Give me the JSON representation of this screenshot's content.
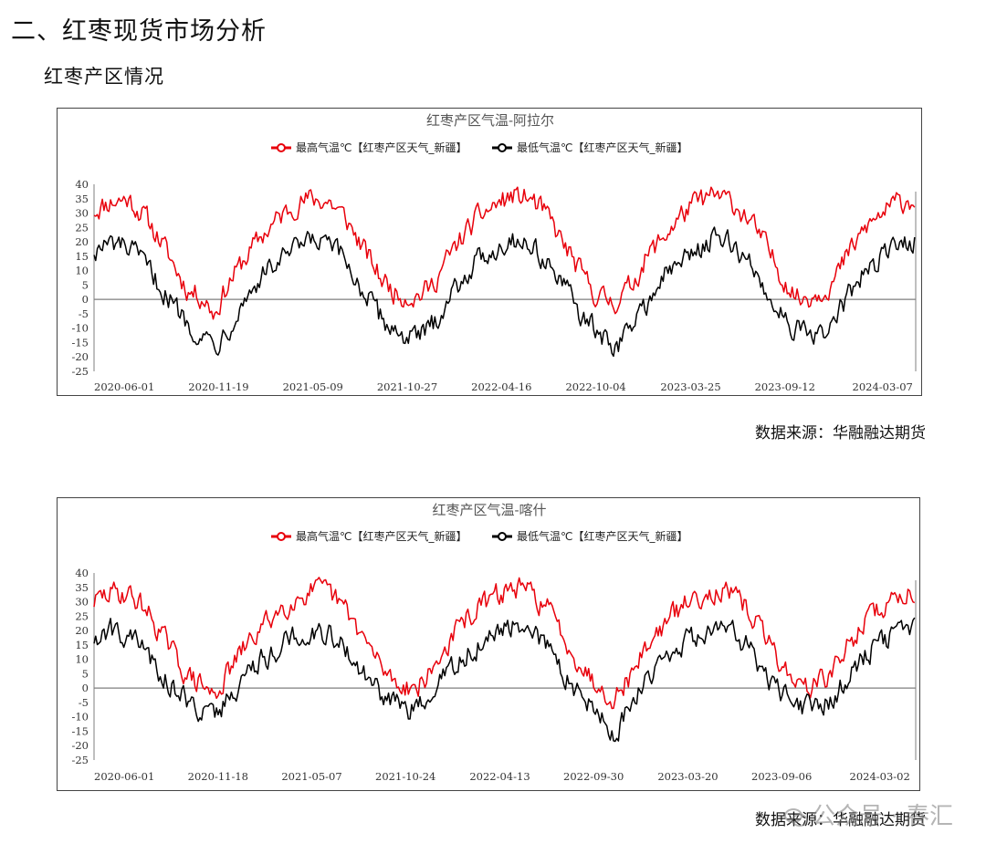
{
  "page": {
    "section_title": "二、红枣现货市场分析",
    "sub_title": "红枣产区情况",
    "sources": [
      "数据来源：华融融达期货",
      "数据来源：华融融达期货"
    ],
    "watermark": "公众号 · 春汇"
  },
  "colors": {
    "max_series": "#e8000b",
    "min_series": "#000000",
    "title": "#555555",
    "axis": "#7f7f7f"
  },
  "chart_data": [
    {
      "type": "line",
      "title": "红枣产区气温-阿拉尔",
      "x_range": [
        "2020-06-01",
        "2024-06-30"
      ],
      "x_ticks": [
        "2020-06-01",
        "2020-11-19",
        "2021-05-09",
        "2021-10-27",
        "2022-04-16",
        "2022-10-04",
        "2023-03-25",
        "2023-09-12",
        "2024-03-07"
      ],
      "ylim": [
        -25,
        40
      ],
      "y_ticks": [
        40,
        35,
        30,
        25,
        20,
        15,
        10,
        5,
        0,
        -5,
        -10,
        -15,
        -20,
        -25
      ],
      "grid": false,
      "legend_position": "top",
      "series": [
        {
          "name": "最高气温℃【红枣产区天气_新疆】",
          "color": "#e8000b",
          "points": [
            [
              "2020-06-01",
              31
            ],
            [
              "2020-07-01",
              34
            ],
            [
              "2020-08-01",
              35
            ],
            [
              "2020-09-01",
              29
            ],
            [
              "2020-10-01",
              20
            ],
            [
              "2020-11-01",
              9
            ],
            [
              "2020-11-19",
              3
            ],
            [
              "2020-12-15",
              1
            ],
            [
              "2021-01-05",
              -5
            ],
            [
              "2021-02-01",
              6
            ],
            [
              "2021-03-01",
              14
            ],
            [
              "2021-04-01",
              22
            ],
            [
              "2021-05-01",
              28
            ],
            [
              "2021-06-01",
              33
            ],
            [
              "2021-07-01",
              35
            ],
            [
              "2021-08-01",
              34
            ],
            [
              "2021-09-01",
              28
            ],
            [
              "2021-10-01",
              18
            ],
            [
              "2021-11-01",
              8
            ],
            [
              "2021-12-01",
              2
            ],
            [
              "2022-01-05",
              1
            ],
            [
              "2022-02-01",
              4
            ],
            [
              "2022-03-01",
              13
            ],
            [
              "2022-04-01",
              22
            ],
            [
              "2022-05-01",
              29
            ],
            [
              "2022-06-01",
              33
            ],
            [
              "2022-07-01",
              36
            ],
            [
              "2022-08-01",
              35
            ],
            [
              "2022-09-01",
              29
            ],
            [
              "2022-10-01",
              19
            ],
            [
              "2022-11-01",
              9
            ],
            [
              "2022-12-01",
              1
            ],
            [
              "2023-01-01",
              -1
            ],
            [
              "2023-02-01",
              5
            ],
            [
              "2023-03-01",
              15
            ],
            [
              "2023-04-01",
              22
            ],
            [
              "2023-05-01",
              29
            ],
            [
              "2023-06-01",
              34
            ],
            [
              "2023-07-01",
              36
            ],
            [
              "2023-08-01",
              34
            ],
            [
              "2023-09-01",
              28
            ],
            [
              "2023-10-01",
              19
            ],
            [
              "2023-11-01",
              8
            ],
            [
              "2023-12-01",
              0
            ],
            [
              "2024-01-01",
              2
            ],
            [
              "2024-02-01",
              6
            ],
            [
              "2024-03-01",
              16
            ],
            [
              "2024-04-01",
              25
            ],
            [
              "2024-05-01",
              30
            ],
            [
              "2024-06-01",
              34
            ],
            [
              "2024-06-30",
              35
            ]
          ]
        },
        {
          "name": "最低气温℃【红枣产区天气_新疆】",
          "color": "#000000",
          "points": [
            [
              "2020-06-01",
              17
            ],
            [
              "2020-07-01",
              19
            ],
            [
              "2020-08-01",
              18
            ],
            [
              "2020-09-01",
              12
            ],
            [
              "2020-10-01",
              4
            ],
            [
              "2020-11-01",
              -4
            ],
            [
              "2020-11-19",
              -8
            ],
            [
              "2020-12-15",
              -13
            ],
            [
              "2021-01-10",
              -15
            ],
            [
              "2021-02-01",
              -9
            ],
            [
              "2021-03-01",
              0
            ],
            [
              "2021-04-01",
              8
            ],
            [
              "2021-05-01",
              13
            ],
            [
              "2021-06-01",
              17
            ],
            [
              "2021-07-01",
              20
            ],
            [
              "2021-08-01",
              19
            ],
            [
              "2021-09-01",
              13
            ],
            [
              "2021-10-01",
              3
            ],
            [
              "2021-11-01",
              -6
            ],
            [
              "2021-12-01",
              -11
            ],
            [
              "2022-01-05",
              -14
            ],
            [
              "2022-02-01",
              -10
            ],
            [
              "2022-03-01",
              -1
            ],
            [
              "2022-04-01",
              8
            ],
            [
              "2022-05-01",
              14
            ],
            [
              "2022-06-01",
              18
            ],
            [
              "2022-07-01",
              21
            ],
            [
              "2022-08-01",
              19
            ],
            [
              "2022-09-01",
              13
            ],
            [
              "2022-10-01",
              4
            ],
            [
              "2022-11-01",
              -5
            ],
            [
              "2022-12-01",
              -12
            ],
            [
              "2023-01-01",
              -17
            ],
            [
              "2023-02-01",
              -9
            ],
            [
              "2023-03-01",
              -1
            ],
            [
              "2023-04-01",
              8
            ],
            [
              "2023-05-01",
              13
            ],
            [
              "2023-06-01",
              18
            ],
            [
              "2023-07-01",
              21
            ],
            [
              "2023-08-01",
              19
            ],
            [
              "2023-09-01",
              13
            ],
            [
              "2023-10-01",
              3
            ],
            [
              "2023-11-01",
              -5
            ],
            [
              "2023-12-01",
              -11
            ],
            [
              "2024-01-01",
              -14
            ],
            [
              "2024-02-01",
              -8
            ],
            [
              "2024-03-01",
              1
            ],
            [
              "2024-04-01",
              10
            ],
            [
              "2024-05-01",
              15
            ],
            [
              "2024-06-01",
              19
            ],
            [
              "2024-06-30",
              21
            ]
          ]
        }
      ]
    },
    {
      "type": "line",
      "title": "红枣产区气温-喀什",
      "x_range": [
        "2020-06-01",
        "2024-06-30"
      ],
      "x_ticks": [
        "2020-06-01",
        "2020-11-18",
        "2021-05-07",
        "2021-10-24",
        "2022-04-13",
        "2022-09-30",
        "2023-03-20",
        "2023-09-06",
        "2024-03-02"
      ],
      "ylim": [
        -25,
        40
      ],
      "y_ticks": [
        40,
        35,
        30,
        25,
        20,
        15,
        10,
        5,
        0,
        -5,
        -10,
        -15,
        -20,
        -25
      ],
      "grid": false,
      "legend_position": "top",
      "series": [
        {
          "name": "最高气温℃【红枣产区天气_新疆】",
          "color": "#e8000b",
          "points": [
            [
              "2020-06-01",
              30
            ],
            [
              "2020-07-01",
              33
            ],
            [
              "2020-08-01",
              33
            ],
            [
              "2020-09-01",
              28
            ],
            [
              "2020-10-01",
              19
            ],
            [
              "2020-11-01",
              9
            ],
            [
              "2020-11-18",
              4
            ],
            [
              "2020-12-15",
              1
            ],
            [
              "2021-01-05",
              -3
            ],
            [
              "2021-02-01",
              6
            ],
            [
              "2021-03-01",
              14
            ],
            [
              "2021-04-01",
              21
            ],
            [
              "2021-05-01",
              27
            ],
            [
              "2021-06-01",
              31
            ],
            [
              "2021-07-01",
              34
            ],
            [
              "2021-08-01",
              33
            ],
            [
              "2021-09-01",
              27
            ],
            [
              "2021-10-01",
              18
            ],
            [
              "2021-11-01",
              8
            ],
            [
              "2021-12-01",
              2
            ],
            [
              "2022-01-05",
              0
            ],
            [
              "2022-02-01",
              5
            ],
            [
              "2022-03-01",
              14
            ],
            [
              "2022-04-01",
              23
            ],
            [
              "2022-05-01",
              28
            ],
            [
              "2022-06-01",
              32
            ],
            [
              "2022-07-01",
              35
            ],
            [
              "2022-08-01",
              33
            ],
            [
              "2022-09-01",
              28
            ],
            [
              "2022-10-01",
              18
            ],
            [
              "2022-11-01",
              8
            ],
            [
              "2022-12-01",
              1
            ],
            [
              "2023-01-01",
              -3
            ],
            [
              "2023-02-01",
              5
            ],
            [
              "2023-03-01",
              15
            ],
            [
              "2023-04-01",
              22
            ],
            [
              "2023-05-01",
              28
            ],
            [
              "2023-06-01",
              32
            ],
            [
              "2023-07-01",
              34
            ],
            [
              "2023-08-01",
              32
            ],
            [
              "2023-09-01",
              27
            ],
            [
              "2023-10-01",
              18
            ],
            [
              "2023-11-01",
              8
            ],
            [
              "2023-12-01",
              1
            ],
            [
              "2024-01-01",
              1
            ],
            [
              "2024-02-01",
              6
            ],
            [
              "2024-03-01",
              15
            ],
            [
              "2024-04-01",
              24
            ],
            [
              "2024-05-01",
              28
            ],
            [
              "2024-06-01",
              32
            ],
            [
              "2024-06-30",
              34
            ]
          ]
        },
        {
          "name": "最低气温℃【红枣产区天气_新疆】",
          "color": "#000000",
          "points": [
            [
              "2020-06-01",
              17
            ],
            [
              "2020-07-01",
              20
            ],
            [
              "2020-08-01",
              19
            ],
            [
              "2020-09-01",
              13
            ],
            [
              "2020-10-01",
              5
            ],
            [
              "2020-11-01",
              -2
            ],
            [
              "2020-11-18",
              -4
            ],
            [
              "2020-12-15",
              -8
            ],
            [
              "2021-01-10",
              -9
            ],
            [
              "2021-02-01",
              -3
            ],
            [
              "2021-03-01",
              4
            ],
            [
              "2021-04-01",
              10
            ],
            [
              "2021-05-01",
              14
            ],
            [
              "2021-06-01",
              18
            ],
            [
              "2021-07-01",
              20
            ],
            [
              "2021-08-01",
              19
            ],
            [
              "2021-09-01",
              14
            ],
            [
              "2021-10-01",
              5
            ],
            [
              "2021-11-01",
              -2
            ],
            [
              "2021-12-01",
              -6
            ],
            [
              "2022-01-05",
              -8
            ],
            [
              "2022-02-01",
              -4
            ],
            [
              "2022-03-01",
              4
            ],
            [
              "2022-04-01",
              11
            ],
            [
              "2022-05-01",
              15
            ],
            [
              "2022-06-01",
              19
            ],
            [
              "2022-07-01",
              21
            ],
            [
              "2022-08-01",
              19
            ],
            [
              "2022-09-01",
              14
            ],
            [
              "2022-10-01",
              5
            ],
            [
              "2022-11-01",
              -2
            ],
            [
              "2022-12-01",
              -8
            ],
            [
              "2023-01-01",
              -17
            ],
            [
              "2023-02-01",
              -5
            ],
            [
              "2023-03-01",
              4
            ],
            [
              "2023-04-01",
              11
            ],
            [
              "2023-05-01",
              15
            ],
            [
              "2023-06-01",
              19
            ],
            [
              "2023-07-01",
              22
            ],
            [
              "2023-08-01",
              20
            ],
            [
              "2023-09-01",
              14
            ],
            [
              "2023-10-01",
              5
            ],
            [
              "2023-11-01",
              -2
            ],
            [
              "2023-12-01",
              -6
            ],
            [
              "2024-01-01",
              -8
            ],
            [
              "2024-02-01",
              -3
            ],
            [
              "2024-03-01",
              5
            ],
            [
              "2024-04-01",
              12
            ],
            [
              "2024-05-01",
              16
            ],
            [
              "2024-06-01",
              19
            ],
            [
              "2024-06-30",
              21
            ]
          ]
        }
      ]
    }
  ]
}
